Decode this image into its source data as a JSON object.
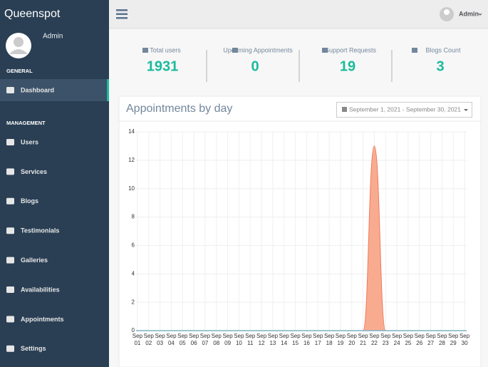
{
  "sidebar": {
    "brand": "Queenspot",
    "user": "Admin",
    "sections": [
      {
        "title": "GENERAL",
        "items": [
          "Dashboard"
        ]
      },
      {
        "title": "MANAGEMENT",
        "items": [
          "Users",
          "Services",
          "Blogs",
          "Testimonials",
          "Galleries",
          "Availabilities",
          "Appointments",
          "Settings"
        ]
      }
    ]
  },
  "topbar": {
    "user": "Admin"
  },
  "stats": [
    {
      "label": "Total users",
      "value": 1931
    },
    {
      "label": "Upcoming Appointments",
      "value": 0
    },
    {
      "label": "Support Requests",
      "value": 19
    },
    {
      "label": "Blogs Count",
      "value": 3
    }
  ],
  "chart_data": {
    "type": "area",
    "title": "Appointments by day",
    "date_range": "September 1, 2021 - September 30, 2021",
    "categories": [
      "Sep 01",
      "Sep 02",
      "Sep 03",
      "Sep 04",
      "Sep 05",
      "Sep 06",
      "Sep 07",
      "Sep 08",
      "Sep 09",
      "Sep 10",
      "Sep 11",
      "Sep 12",
      "Sep 13",
      "Sep 14",
      "Sep 15",
      "Sep 16",
      "Sep 17",
      "Sep 18",
      "Sep 19",
      "Sep 20",
      "Sep 21",
      "Sep 22",
      "Sep 23",
      "Sep 24",
      "Sep 25",
      "Sep 26",
      "Sep 27",
      "Sep 28",
      "Sep 29",
      "Sep 30"
    ],
    "values": [
      0,
      0,
      0,
      0,
      0,
      0,
      0,
      0,
      0,
      0,
      0,
      0,
      0,
      0,
      0,
      0,
      0,
      0,
      0,
      0,
      0,
      13,
      0,
      0,
      0,
      0,
      0,
      0,
      0,
      0
    ],
    "color": "#f9ab90",
    "ylim": [
      0,
      14
    ],
    "yticks": [
      0,
      2,
      4,
      6,
      8,
      10,
      12,
      14
    ],
    "grid": true
  }
}
